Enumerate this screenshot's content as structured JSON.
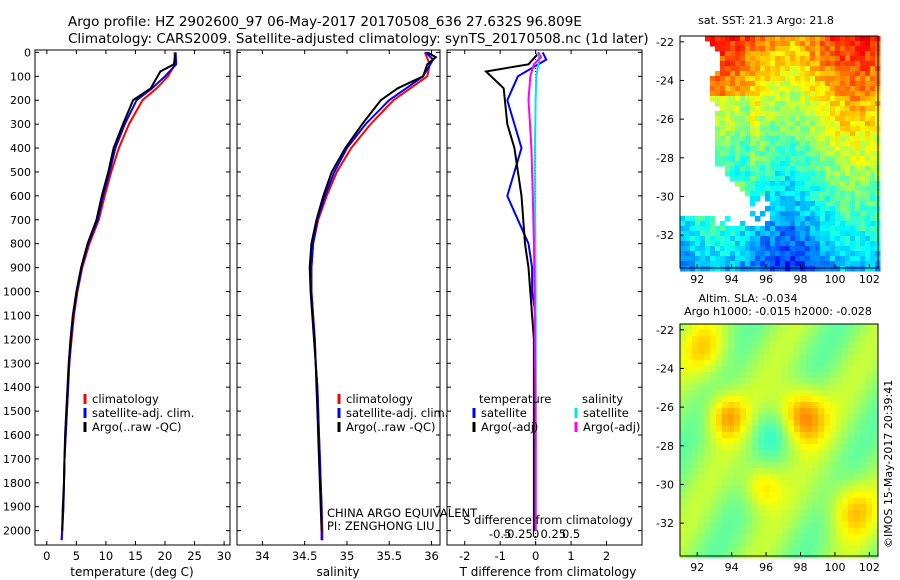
{
  "header": {
    "line1": "Argo profile: HZ 2902600_97 06-May-2017 20170508_636 27.632S 96.809E",
    "line2": "Climatology: CARS2009. Satellite-adjusted climatology: synTS_20170508.nc (1d later)"
  },
  "chart_data": [
    {
      "type": "line",
      "id": "temperature",
      "xlabel": "temperature (deg C)",
      "ylabel": "",
      "xlim": [
        -2,
        31
      ],
      "ylim": [
        2060,
        -10
      ],
      "xticks": [
        0,
        5,
        10,
        15,
        20,
        25,
        30
      ],
      "yticks": [
        0,
        100,
        200,
        300,
        400,
        500,
        600,
        700,
        800,
        900,
        1000,
        1100,
        1200,
        1300,
        1400,
        1500,
        1600,
        1700,
        1800,
        1900,
        2000
      ],
      "legend": [
        "climatology",
        "satellite-adj. clim.",
        "Argo(..raw -QC)"
      ],
      "series": [
        {
          "name": "climatology",
          "color": "#ff0000",
          "points": [
            [
              21.6,
              0
            ],
            [
              21.7,
              50
            ],
            [
              20.5,
              100
            ],
            [
              18.6,
              150
            ],
            [
              16.2,
              200
            ],
            [
              13.9,
              300
            ],
            [
              12.2,
              400
            ],
            [
              10.9,
              500
            ],
            [
              9.8,
              600
            ],
            [
              8.8,
              700
            ],
            [
              7.2,
              800
            ],
            [
              6.0,
              900
            ],
            [
              5.2,
              1000
            ],
            [
              4.6,
              1100
            ],
            [
              4.2,
              1200
            ],
            [
              3.8,
              1300
            ],
            [
              3.6,
              1400
            ],
            [
              3.4,
              1500
            ],
            [
              3.2,
              1600
            ],
            [
              3.0,
              1700
            ],
            [
              2.9,
              1800
            ],
            [
              2.8,
              1900
            ],
            [
              2.6,
              2000
            ],
            [
              2.5,
              2040
            ]
          ]
        },
        {
          "name": "satellite-adj. clim.",
          "color": "#0000ff",
          "points": [
            [
              21.8,
              0
            ],
            [
              21.9,
              50
            ],
            [
              20.0,
              100
            ],
            [
              17.8,
              150
            ],
            [
              15.2,
              200
            ],
            [
              13.2,
              300
            ],
            [
              11.6,
              400
            ],
            [
              10.6,
              500
            ],
            [
              9.5,
              600
            ],
            [
              8.6,
              700
            ],
            [
              7.0,
              800
            ],
            [
              5.9,
              900
            ],
            [
              5.1,
              1000
            ],
            [
              4.5,
              1100
            ],
            [
              4.1,
              1200
            ],
            [
              3.8,
              1300
            ],
            [
              3.6,
              1400
            ],
            [
              3.4,
              1500
            ],
            [
              3.2,
              1600
            ],
            [
              3.0,
              1700
            ],
            [
              2.9,
              1800
            ],
            [
              2.8,
              1900
            ],
            [
              2.6,
              2000
            ],
            [
              2.5,
              2040
            ]
          ]
        },
        {
          "name": "Argo(..raw -QC)",
          "color": "#000000",
          "points": [
            [
              21.8,
              0
            ],
            [
              21.5,
              50
            ],
            [
              19.2,
              80
            ],
            [
              17.6,
              150
            ],
            [
              14.6,
              200
            ],
            [
              12.9,
              300
            ],
            [
              11.3,
              400
            ],
            [
              10.4,
              500
            ],
            [
              9.3,
              600
            ],
            [
              8.4,
              700
            ],
            [
              6.9,
              800
            ],
            [
              5.8,
              900
            ],
            [
              5.0,
              1000
            ],
            [
              4.4,
              1100
            ],
            [
              4.0,
              1200
            ],
            [
              3.7,
              1300
            ],
            [
              3.5,
              1400
            ],
            [
              3.3,
              1500
            ],
            [
              3.1,
              1600
            ],
            [
              3.0,
              1700
            ],
            [
              2.9,
              1800
            ],
            [
              2.7,
              1900
            ],
            [
              2.6,
              2000
            ]
          ]
        }
      ]
    },
    {
      "type": "line",
      "id": "salinity",
      "xlabel": "salinity",
      "ylabel": "",
      "xlim": [
        33.7,
        36.1
      ],
      "ylim": [
        2060,
        -10
      ],
      "xticks": [
        34,
        34.5,
        35,
        35.5,
        36
      ],
      "xticklabels": [
        "34",
        "34.5",
        "35",
        "35.5",
        "36"
      ],
      "legend": [
        "climatology",
        "satellite-adj. clim.",
        "Argo(..raw -QC)"
      ],
      "annotation": [
        "CHINA ARGO EQUIVALENT",
        "PI: ZENGHONG LIU"
      ],
      "series": [
        {
          "name": "climatology",
          "color": "#ff0000",
          "points": [
            [
              35.92,
              0
            ],
            [
              35.98,
              50
            ],
            [
              35.95,
              100
            ],
            [
              35.75,
              150
            ],
            [
              35.55,
              200
            ],
            [
              35.28,
              300
            ],
            [
              35.05,
              400
            ],
            [
              34.88,
              500
            ],
            [
              34.76,
              600
            ],
            [
              34.66,
              700
            ],
            [
              34.6,
              800
            ],
            [
              34.58,
              900
            ],
            [
              34.58,
              1000
            ],
            [
              34.6,
              1100
            ],
            [
              34.62,
              1200
            ],
            [
              34.63,
              1300
            ],
            [
              34.65,
              1400
            ],
            [
              34.66,
              1500
            ],
            [
              34.67,
              1600
            ],
            [
              34.68,
              1700
            ],
            [
              34.69,
              1800
            ],
            [
              34.7,
              1900
            ],
            [
              34.71,
              2000
            ],
            [
              34.71,
              2040
            ]
          ]
        },
        {
          "name": "satellite-adj. clim.",
          "color": "#0000ff",
          "points": [
            [
              35.93,
              0
            ],
            [
              36.02,
              30
            ],
            [
              35.9,
              100
            ],
            [
              35.7,
              150
            ],
            [
              35.5,
              200
            ],
            [
              35.22,
              300
            ],
            [
              35.0,
              400
            ],
            [
              34.85,
              500
            ],
            [
              34.74,
              600
            ],
            [
              34.65,
              700
            ],
            [
              34.6,
              800
            ],
            [
              34.58,
              900
            ],
            [
              34.58,
              1000
            ],
            [
              34.6,
              1100
            ],
            [
              34.62,
              1200
            ],
            [
              34.63,
              1300
            ],
            [
              34.65,
              1400
            ],
            [
              34.66,
              1500
            ],
            [
              34.67,
              1600
            ],
            [
              34.68,
              1700
            ],
            [
              34.69,
              1800
            ],
            [
              34.7,
              1900
            ],
            [
              34.7,
              2000
            ],
            [
              34.7,
              2040
            ]
          ]
        },
        {
          "name": "Argo(..raw -QC)",
          "color": "#000000",
          "points": [
            [
              35.95,
              0
            ],
            [
              36.05,
              20
            ],
            [
              35.95,
              50
            ],
            [
              35.9,
              100
            ],
            [
              35.6,
              150
            ],
            [
              35.4,
              200
            ],
            [
              35.18,
              300
            ],
            [
              34.98,
              400
            ],
            [
              34.82,
              500
            ],
            [
              34.72,
              600
            ],
            [
              34.64,
              700
            ],
            [
              34.58,
              800
            ],
            [
              34.56,
              900
            ],
            [
              34.57,
              1000
            ],
            [
              34.59,
              1100
            ],
            [
              34.61,
              1200
            ],
            [
              34.63,
              1300
            ],
            [
              34.64,
              1400
            ],
            [
              34.65,
              1500
            ],
            [
              34.66,
              1600
            ],
            [
              34.67,
              1700
            ],
            [
              34.68,
              1800
            ],
            [
              34.69,
              1900
            ],
            [
              34.7,
              2000
            ]
          ]
        }
      ]
    },
    {
      "type": "line",
      "id": "difference",
      "xlabel": "T difference from climatology",
      "xlabel2": "S difference from climatology",
      "xlim": [
        -2.5,
        3
      ],
      "ylim": [
        2060,
        -10
      ],
      "xticks": [
        -2,
        -1,
        0,
        1,
        2
      ],
      "xticks2": [
        -0.5,
        -0.25,
        0,
        0.25,
        0.5
      ],
      "xticklabels2": [
        "-0.5",
        "-0.25",
        "0",
        "0.25",
        "0.5"
      ],
      "legend_titles": [
        "temperature",
        "salinity"
      ],
      "legend": [
        "satellite",
        "Argo(-adj)",
        "satellite",
        "Argo(-adj)"
      ],
      "series": [
        {
          "name": "temperature satellite",
          "color": "#0000ff",
          "points": [
            [
              0.2,
              0
            ],
            [
              0.3,
              30
            ],
            [
              -0.5,
              100
            ],
            [
              -0.8,
              200
            ],
            [
              -0.6,
              300
            ],
            [
              -0.4,
              400
            ],
            [
              -0.6,
              500
            ],
            [
              -0.8,
              600
            ],
            [
              -0.5,
              700
            ],
            [
              -0.2,
              800
            ],
            [
              -0.1,
              900
            ],
            [
              -0.1,
              1000
            ],
            [
              0,
              1100
            ],
            [
              0,
              1200
            ],
            [
              0,
              1300
            ],
            [
              0,
              1400
            ],
            [
              0,
              1500
            ],
            [
              0,
              1600
            ],
            [
              0,
              1700
            ],
            [
              0,
              1800
            ],
            [
              0,
              1900
            ],
            [
              0,
              2000
            ]
          ]
        },
        {
          "name": "temperature Argo(-adj)",
          "color": "#000000",
          "points": [
            [
              0.1,
              0
            ],
            [
              -0.2,
              50
            ],
            [
              -1.4,
              80
            ],
            [
              -0.9,
              150
            ],
            [
              -0.8,
              300
            ],
            [
              -0.6,
              400
            ],
            [
              -0.4,
              600
            ],
            [
              -0.3,
              800
            ],
            [
              -0.2,
              900
            ],
            [
              -0.15,
              1000
            ],
            [
              -0.1,
              1100
            ],
            [
              -0.05,
              1200
            ],
            [
              -0.05,
              1300
            ],
            [
              -0.05,
              1400
            ],
            [
              -0.05,
              1500
            ],
            [
              -0.05,
              1600
            ],
            [
              -0.05,
              1700
            ],
            [
              -0.05,
              1800
            ],
            [
              -0.05,
              1900
            ],
            [
              -0.05,
              2000
            ]
          ]
        },
        {
          "name": "salinity satellite",
          "color": "#00e5e5",
          "points": [
            [
              0.05,
              0
            ],
            [
              0.1,
              30
            ],
            [
              0.02,
              100
            ],
            [
              0.0,
              200
            ],
            [
              -0.01,
              300
            ],
            [
              -0.02,
              400
            ],
            [
              -0.02,
              600
            ],
            [
              -0.01,
              800
            ],
            [
              0,
              1000
            ],
            [
              0,
              1200
            ],
            [
              0,
              1400
            ],
            [
              0,
              1600
            ],
            [
              0,
              1800
            ],
            [
              0,
              2000
            ]
          ]
        },
        {
          "name": "salinity Argo(-adj)",
          "color": "#ff00ff",
          "points": [
            [
              0.08,
              0
            ],
            [
              0.15,
              20
            ],
            [
              -0.05,
              50
            ],
            [
              -0.15,
              100
            ],
            [
              -0.2,
              200
            ],
            [
              -0.16,
              300
            ],
            [
              -0.12,
              400
            ],
            [
              -0.08,
              600
            ],
            [
              -0.05,
              800
            ],
            [
              -0.03,
              1000
            ],
            [
              -0.02,
              1200
            ],
            [
              -0.01,
              1400
            ],
            [
              0,
              1600
            ],
            [
              0,
              1800
            ],
            [
              0,
              2000
            ]
          ]
        }
      ]
    },
    {
      "type": "heatmap",
      "id": "sst_map",
      "title": "sat. SST: 21.3 Argo: 21.8",
      "xlim": [
        91,
        102.5
      ],
      "ylim": [
        -33.7,
        -21.7
      ],
      "xticks": [
        92,
        94,
        96,
        98,
        100,
        102
      ],
      "yticks": [
        -22,
        -24,
        -26,
        -28,
        -30,
        -32
      ]
    },
    {
      "type": "heatmap",
      "id": "sla_map",
      "title": "Altim. SLA: -0.034",
      "subtitle": "Argo h1000: -0.015 h2000: -0.028",
      "xlim": [
        91,
        102.5
      ],
      "ylim": [
        -33.7,
        -21.7
      ],
      "xticks": [
        92,
        94,
        96,
        98,
        100,
        102
      ],
      "yticks": [
        -22,
        -24,
        -26,
        -28,
        -30,
        -32
      ]
    }
  ],
  "footer": {
    "stamp": "©IMOS 15-May-2017 20:39:41"
  }
}
